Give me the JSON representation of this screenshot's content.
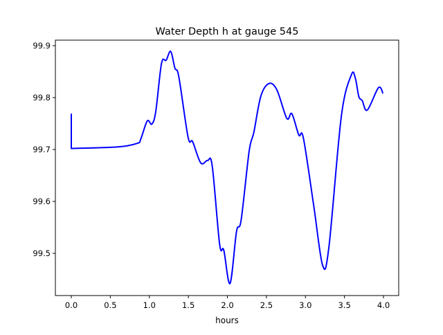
{
  "chart_data": {
    "type": "line",
    "title": "Water Depth h at gauge 545",
    "xlabel": "hours",
    "ylabel": "",
    "xlim": [
      -0.204,
      4.195
    ],
    "ylim": [
      99.4187,
      99.9107
    ],
    "xticks": [
      0,
      0.5,
      1,
      1.5,
      2,
      2.5,
      3,
      3.5,
      4
    ],
    "xtick_labels": [
      "0.0",
      "0.5",
      "1.0",
      "1.5",
      "2.0",
      "2.5",
      "3.0",
      "3.5",
      "4.0"
    ],
    "yticks": [
      99.5,
      99.6,
      99.7,
      99.8,
      99.9
    ],
    "ytick_labels": [
      "99.5",
      "99.6",
      "99.7",
      "99.8",
      "99.9"
    ],
    "grid": false,
    "series": [
      {
        "name": "h",
        "color": "#0000ff",
        "x": [
          0,
          0,
          0.594,
          0.846,
          0.89,
          0.973,
          1.032,
          1.082,
          1.156,
          1.215,
          1.274,
          1.327,
          1.378,
          1.496,
          1.555,
          1.659,
          1.747,
          1.806,
          1.901,
          1.954,
          2.034,
          2.117,
          2.176,
          2.279,
          2.339,
          2.427,
          2.531,
          2.634,
          2.761,
          2.826,
          2.915,
          2.974,
          3.107,
          3.22,
          3.3,
          3.46,
          3.589,
          3.64,
          3.684,
          3.728,
          3.793,
          3.935,
          3.994
        ],
        "y": [
          99.769,
          99.702,
          99.705,
          99.712,
          99.72,
          99.755,
          99.749,
          99.773,
          99.866,
          99.872,
          99.889,
          99.857,
          99.84,
          99.724,
          99.715,
          99.674,
          99.679,
          99.668,
          99.517,
          99.506,
          99.442,
          99.542,
          99.564,
          99.697,
          99.733,
          99.802,
          99.827,
          99.815,
          99.76,
          99.769,
          99.728,
          99.722,
          99.591,
          99.477,
          99.511,
          99.764,
          99.844,
          99.837,
          99.802,
          99.794,
          99.776,
          99.819,
          99.808
        ]
      }
    ]
  }
}
